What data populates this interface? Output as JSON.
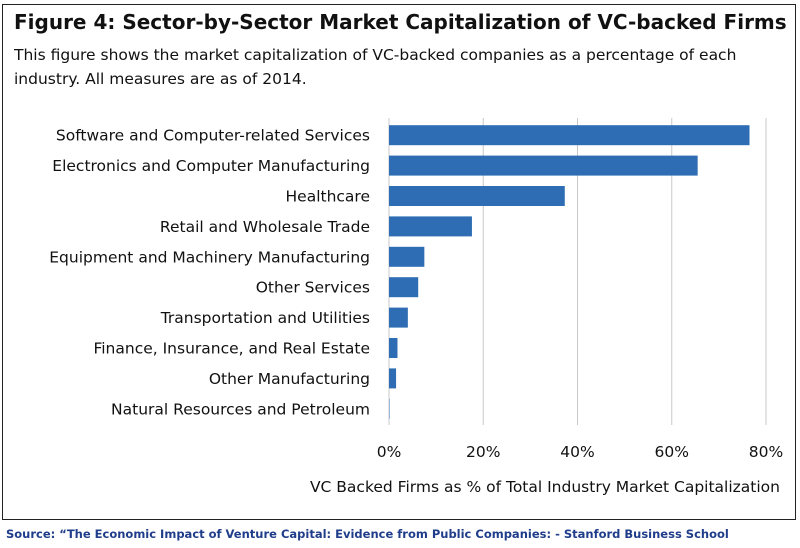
{
  "figure": {
    "title": "Figure 4: Sector-by-Sector Market Capitalization of VC-backed Firms",
    "subtitle": "This figure shows the market capitalization of VC-backed companies as a percentage of each industry. All measures are as of 2014."
  },
  "source": "Source: “The Economic Impact of Venture Capital: Evidence from Public Companies: - Stanford Business School",
  "colors": {
    "bar": "#2e6db4",
    "grid": "#c8c8c8",
    "text": "#111111",
    "source": "#1f3d8a"
  },
  "chart_data": {
    "type": "bar",
    "orientation": "horizontal",
    "categories": [
      "Software and Computer-related Services",
      "Electronics and Computer Manufacturing",
      "Healthcare",
      "Retail and Wholesale Trade",
      "Equipment and Machinery Manufacturing",
      "Other Services",
      "Transportation and Utilities",
      "Finance, Insurance, and Real Estate",
      "Other Manufacturing",
      "Natural Resources and Petroleum"
    ],
    "values": [
      76.5,
      65.5,
      37.3,
      17.6,
      7.5,
      6.2,
      4.0,
      1.8,
      1.5,
      0.1
    ],
    "xlabel": "VC Backed Firms as % of Total Industry Market Capitalization",
    "ylabel": "",
    "xlim": [
      0,
      80
    ],
    "xticks": [
      "0%",
      "20%",
      "40%",
      "60%",
      "80%"
    ],
    "tick_values": [
      0,
      20,
      40,
      60,
      80
    ],
    "grid": "vertical"
  }
}
